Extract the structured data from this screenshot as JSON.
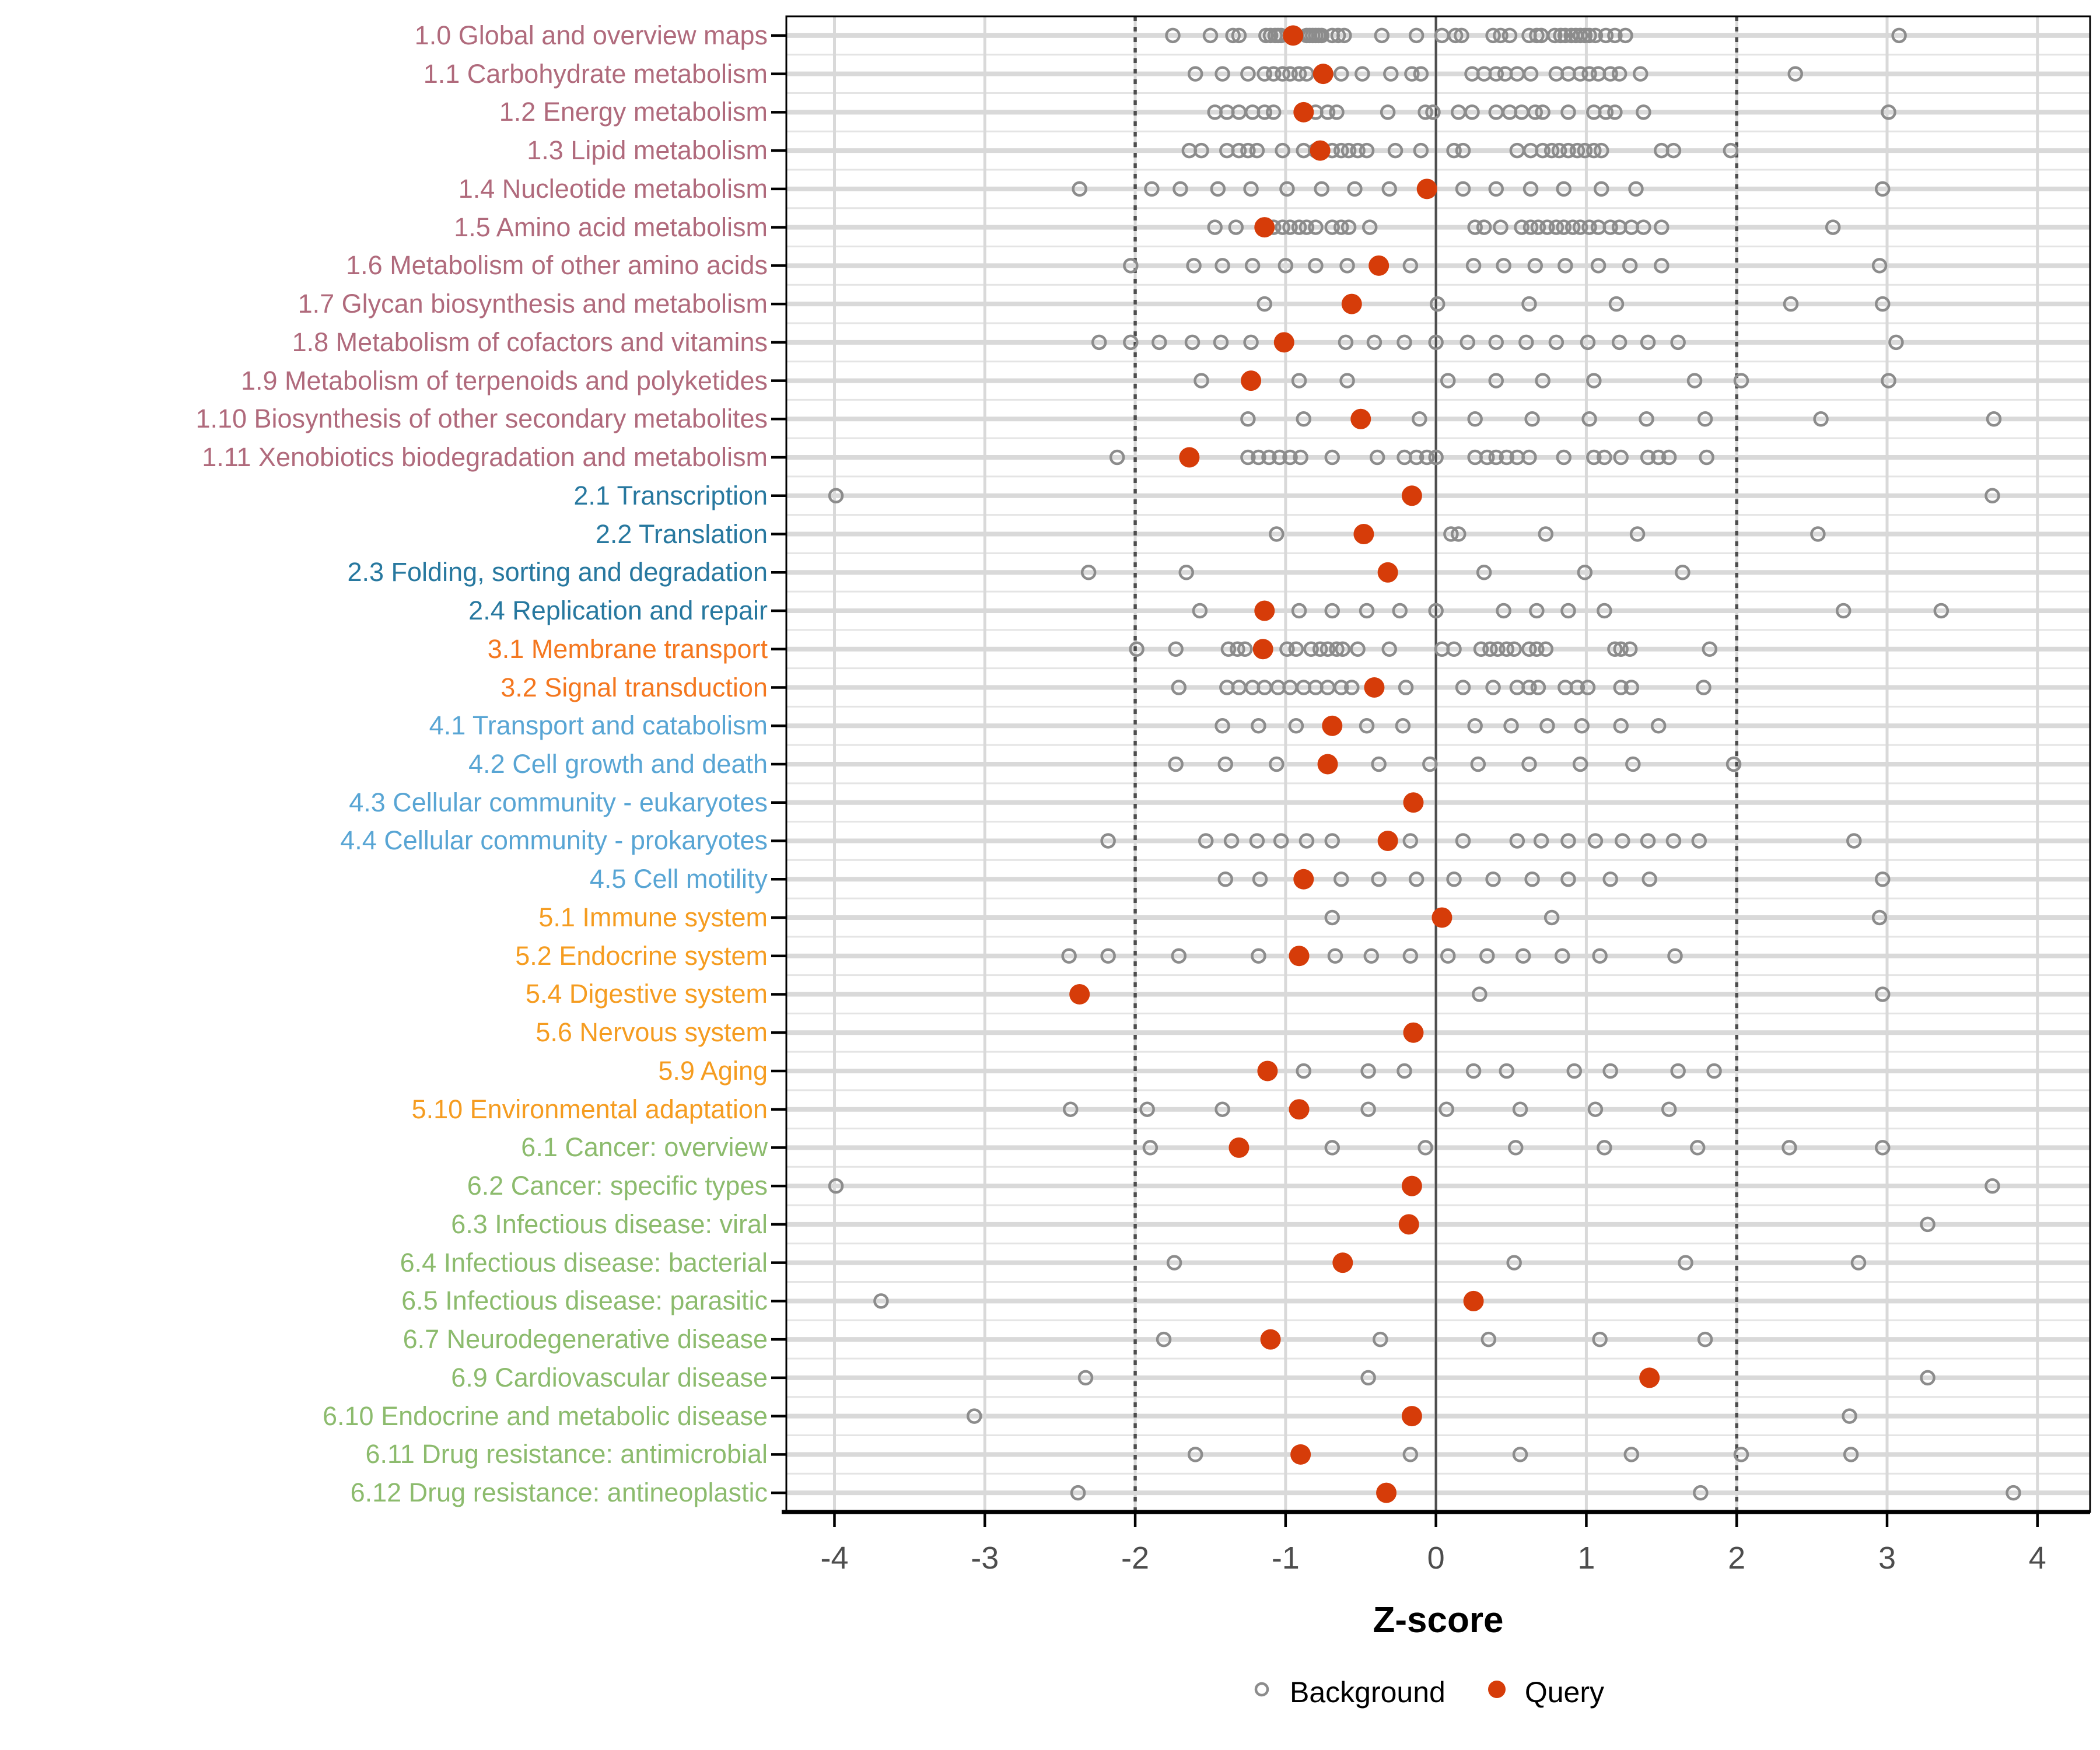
{
  "figure": {
    "xlabel": "Z-score",
    "background_color": "#ffffff",
    "panel_border_color": "#000000",
    "grid_major_color": "#d9d9d9",
    "grid_minor_color": "#e4e4e4",
    "reference_line_color": "#4d4d4d",
    "axis_tick_label_color": "#4d4d4d",
    "background_point_color": "#8c8c8c",
    "query_point_color": "#d63c09"
  },
  "legend": {
    "background_label": "Background",
    "query_label": "Query"
  },
  "chart_data": {
    "type": "scatter",
    "title": "",
    "xlabel": "Z-score",
    "ylabel": "",
    "xlim": [
      -4.32,
      4.35
    ],
    "x_ticks": [
      -4,
      -3,
      -2,
      -1,
      0,
      1,
      2,
      3,
      4
    ],
    "grid": true,
    "legend_position": "bottom",
    "legend_entries": [
      "Background",
      "Query"
    ],
    "reference_lines": {
      "solid": [
        0
      ],
      "dotted": [
        -2,
        2
      ]
    },
    "group_colors": {
      "1": "#b06a7c",
      "2": "#27789f",
      "3": "#f4771f",
      "4": "#58a5d4",
      "5": "#f59c20",
      "6": "#8cbb6d"
    },
    "series": [
      {
        "name": "Background",
        "marker": "open-circle",
        "color": "#8c8c8c"
      },
      {
        "name": "Query",
        "marker": "filled-circle",
        "color": "#d63c09"
      }
    ],
    "rows": [
      {
        "label": "1.0 Global and overview maps",
        "group": "1",
        "query": -0.95,
        "background": [
          -1.75,
          -1.5,
          -1.35,
          -1.31,
          -1.13,
          -1.1,
          -1.07,
          -1.05,
          -1.03,
          -0.86,
          -0.84,
          -0.82,
          -0.8,
          -0.78,
          -0.76,
          -0.69,
          -0.65,
          -0.61,
          -0.36,
          -0.13,
          0.04,
          0.13,
          0.17,
          0.38,
          0.43,
          0.49,
          0.62,
          0.67,
          0.7,
          0.79,
          0.83,
          0.86,
          0.9,
          0.93,
          0.96,
          0.99,
          1.02,
          1.06,
          1.13,
          1.19,
          1.26,
          3.08
        ]
      },
      {
        "label": "1.1 Carbohydrate metabolism",
        "group": "1",
        "query": -0.75,
        "background": [
          -1.6,
          -1.42,
          -1.25,
          -1.14,
          -1.08,
          -1.02,
          -0.97,
          -0.91,
          -0.86,
          -0.63,
          -0.49,
          -0.3,
          -0.16,
          -0.1,
          0.24,
          0.32,
          0.4,
          0.46,
          0.54,
          0.63,
          0.8,
          0.88,
          0.96,
          1.02,
          1.08,
          1.16,
          1.22,
          1.36,
          2.39
        ]
      },
      {
        "label": "1.2 Energy metabolism",
        "group": "1",
        "query": -0.88,
        "background": [
          -1.47,
          -1.39,
          -1.31,
          -1.22,
          -1.14,
          -1.08,
          -0.8,
          -0.72,
          -0.66,
          -0.32,
          -0.07,
          -0.02,
          0.15,
          0.24,
          0.4,
          0.49,
          0.57,
          0.66,
          0.71,
          0.88,
          1.05,
          1.13,
          1.19,
          1.38,
          3.01
        ]
      },
      {
        "label": "1.3 Lipid metabolism",
        "group": "1",
        "query": -0.77,
        "background": [
          -1.64,
          -1.56,
          -1.39,
          -1.31,
          -1.25,
          -1.19,
          -1.02,
          -0.88,
          -0.8,
          -0.69,
          -0.63,
          -0.58,
          -0.52,
          -0.46,
          -0.27,
          -0.1,
          0.12,
          0.18,
          0.54,
          0.63,
          0.71,
          0.77,
          0.82,
          0.88,
          0.94,
          0.99,
          1.05,
          1.1,
          1.5,
          1.58,
          1.96
        ]
      },
      {
        "label": "1.4 Nucleotide metabolism",
        "group": "1",
        "query": -0.06,
        "background": [
          -2.37,
          -1.89,
          -1.7,
          -1.45,
          -1.23,
          -0.99,
          -0.76,
          -0.54,
          -0.31,
          0.18,
          0.4,
          0.63,
          0.85,
          1.1,
          1.33,
          2.97
        ]
      },
      {
        "label": "1.5 Amino acid metabolism",
        "group": "1",
        "query": -1.14,
        "background": [
          -1.47,
          -1.33,
          -1.08,
          -1.02,
          -0.97,
          -0.91,
          -0.86,
          -0.8,
          -0.69,
          -0.63,
          -0.58,
          -0.44,
          0.26,
          0.32,
          0.43,
          0.57,
          0.63,
          0.68,
          0.74,
          0.8,
          0.85,
          0.91,
          0.96,
          1.02,
          1.08,
          1.16,
          1.22,
          1.3,
          1.38,
          1.5,
          2.64
        ]
      },
      {
        "label": "1.6 Metabolism of other amino acids",
        "group": "1",
        "query": -0.38,
        "background": [
          -2.03,
          -1.61,
          -1.42,
          -1.22,
          -1.0,
          -0.8,
          -0.59,
          -0.17,
          0.25,
          0.45,
          0.66,
          0.86,
          1.08,
          1.29,
          1.5,
          2.95
        ]
      },
      {
        "label": "1.7 Glycan biosynthesis and metabolism",
        "group": "1",
        "query": -0.56,
        "background": [
          -1.14,
          0.01,
          0.62,
          1.2,
          2.36,
          2.97
        ]
      },
      {
        "label": "1.8 Metabolism of cofactors and vitamins",
        "group": "1",
        "query": -1.01,
        "background": [
          -2.24,
          -2.03,
          -1.84,
          -1.62,
          -1.43,
          -1.23,
          -0.6,
          -0.41,
          -0.21,
          0.0,
          0.21,
          0.4,
          0.6,
          0.8,
          1.01,
          1.22,
          1.41,
          1.61,
          3.06
        ]
      },
      {
        "label": "1.9 Metabolism of terpenoids and polyketides",
        "group": "1",
        "query": -1.23,
        "background": [
          -1.56,
          -0.91,
          -0.59,
          0.08,
          0.4,
          0.71,
          1.05,
          1.72,
          2.03,
          3.01
        ]
      },
      {
        "label": "1.10 Biosynthesis of other secondary metabolites",
        "group": "1",
        "query": -0.5,
        "background": [
          -1.25,
          -0.88,
          -0.11,
          0.26,
          0.64,
          1.02,
          1.4,
          1.79,
          2.56,
          3.71
        ]
      },
      {
        "label": "1.11 Xenobiotics biodegradation and metabolism",
        "group": "1",
        "query": -1.64,
        "background": [
          -2.12,
          -1.25,
          -1.18,
          -1.11,
          -1.04,
          -0.97,
          -0.9,
          -0.69,
          -0.39,
          -0.21,
          -0.13,
          -0.06,
          0.0,
          0.26,
          0.34,
          0.4,
          0.47,
          0.54,
          0.62,
          0.85,
          1.05,
          1.12,
          1.23,
          1.41,
          1.48,
          1.55,
          1.8
        ]
      },
      {
        "label": "2.1 Transcription",
        "group": "2",
        "query": -0.16,
        "background": [
          -3.99,
          3.7
        ]
      },
      {
        "label": "2.2 Translation",
        "group": "2",
        "query": -0.48,
        "background": [
          -1.06,
          0.1,
          0.15,
          0.73,
          1.34,
          2.54
        ]
      },
      {
        "label": "2.3 Folding, sorting and degradation",
        "group": "2",
        "query": -0.32,
        "background": [
          -2.31,
          -1.66,
          0.32,
          0.99,
          1.64
        ]
      },
      {
        "label": "2.4 Replication and repair",
        "group": "2",
        "query": -1.14,
        "background": [
          -1.57,
          -0.91,
          -0.69,
          -0.46,
          -0.24,
          0.0,
          0.45,
          0.67,
          0.88,
          1.12,
          2.71,
          3.36
        ]
      },
      {
        "label": "3.1 Membrane transport",
        "group": "3",
        "query": -1.15,
        "background": [
          -1.99,
          -1.73,
          -1.38,
          -1.32,
          -1.27,
          -0.99,
          -0.93,
          -0.83,
          -0.77,
          -0.72,
          -0.66,
          -0.62,
          -0.52,
          -0.31,
          0.04,
          0.12,
          0.3,
          0.36,
          0.41,
          0.47,
          0.52,
          0.62,
          0.67,
          0.73,
          1.19,
          1.23,
          1.29,
          1.82
        ]
      },
      {
        "label": "3.2 Signal transduction",
        "group": "3",
        "query": -0.41,
        "background": [
          -1.71,
          -1.39,
          -1.31,
          -1.22,
          -1.14,
          -1.05,
          -0.97,
          -0.88,
          -0.8,
          -0.72,
          -0.63,
          -0.56,
          -0.2,
          0.18,
          0.38,
          0.54,
          0.62,
          0.68,
          0.86,
          0.94,
          1.01,
          1.23,
          1.3,
          1.78
        ]
      },
      {
        "label": "4.1 Transport and catabolism",
        "group": "4",
        "query": -0.69,
        "background": [
          -1.42,
          -1.18,
          -0.93,
          -0.46,
          -0.22,
          0.26,
          0.5,
          0.74,
          0.97,
          1.23,
          1.48
        ]
      },
      {
        "label": "4.2 Cell growth and death",
        "group": "4",
        "query": -0.72,
        "background": [
          -1.73,
          -1.4,
          -1.06,
          -0.38,
          -0.04,
          0.28,
          0.62,
          0.96,
          1.31,
          1.98
        ]
      },
      {
        "label": "4.3 Cellular community - eukaryotes",
        "group": "4",
        "query": -0.15,
        "background": []
      },
      {
        "label": "4.4 Cellular community - prokaryotes",
        "group": "4",
        "query": -0.32,
        "background": [
          -2.18,
          -1.53,
          -1.36,
          -1.19,
          -1.03,
          -0.86,
          -0.69,
          -0.17,
          0.18,
          0.54,
          0.7,
          0.88,
          1.06,
          1.24,
          1.41,
          1.58,
          1.75,
          2.78
        ]
      },
      {
        "label": "4.5 Cell motility",
        "group": "4",
        "query": -0.88,
        "background": [
          -1.4,
          -1.17,
          -0.63,
          -0.38,
          -0.13,
          0.12,
          0.38,
          0.64,
          0.88,
          1.16,
          1.42,
          2.97
        ]
      },
      {
        "label": "5.1 Immune system",
        "group": "5",
        "query": 0.04,
        "background": [
          -0.69,
          0.77,
          2.95
        ]
      },
      {
        "label": "5.2 Endocrine system",
        "group": "5",
        "query": -0.91,
        "background": [
          -2.44,
          -2.18,
          -1.71,
          -1.18,
          -0.67,
          -0.43,
          -0.17,
          0.08,
          0.34,
          0.58,
          0.84,
          1.09,
          1.59
        ]
      },
      {
        "label": "5.4 Digestive system",
        "group": "5",
        "query": -2.37,
        "background": [
          0.29,
          2.97
        ]
      },
      {
        "label": "5.6 Nervous system",
        "group": "5",
        "query": -0.15,
        "background": []
      },
      {
        "label": "5.9 Aging",
        "group": "5",
        "query": -1.12,
        "background": [
          -0.88,
          -0.45,
          -0.21,
          0.25,
          0.47,
          0.92,
          1.16,
          1.61,
          1.85
        ]
      },
      {
        "label": "5.10 Environmental adaptation",
        "group": "5",
        "query": -0.91,
        "background": [
          -2.43,
          -1.92,
          -1.42,
          -0.45,
          0.07,
          0.56,
          1.06,
          1.55
        ]
      },
      {
        "label": "6.1 Cancer: overview",
        "group": "6",
        "query": -1.31,
        "background": [
          -1.9,
          -0.69,
          -0.07,
          0.53,
          1.12,
          1.74,
          2.35,
          2.97
        ]
      },
      {
        "label": "6.2 Cancer: specific types",
        "group": "6",
        "query": -0.16,
        "background": [
          -3.99,
          3.7
        ]
      },
      {
        "label": "6.3 Infectious disease: viral",
        "group": "6",
        "query": -0.18,
        "background": [
          3.27
        ]
      },
      {
        "label": "6.4 Infectious disease: bacterial",
        "group": "6",
        "query": -0.62,
        "background": [
          -1.74,
          0.52,
          1.66,
          2.81
        ]
      },
      {
        "label": "6.5 Infectious disease: parasitic",
        "group": "6",
        "query": 0.25,
        "background": [
          -3.69
        ]
      },
      {
        "label": "6.7 Neurodegenerative disease",
        "group": "6",
        "query": -1.1,
        "background": [
          -1.81,
          -0.37,
          0.35,
          1.09,
          1.79
        ]
      },
      {
        "label": "6.9 Cardiovascular disease",
        "group": "6",
        "query": 1.42,
        "background": [
          -2.33,
          -0.45,
          3.27
        ]
      },
      {
        "label": "6.10 Endocrine and metabolic disease",
        "group": "6",
        "query": -0.16,
        "background": [
          -3.07,
          2.75
        ]
      },
      {
        "label": "6.11 Drug resistance: antimicrobial",
        "group": "6",
        "query": -0.9,
        "background": [
          -1.6,
          -0.17,
          0.56,
          1.3,
          2.03,
          2.76
        ]
      },
      {
        "label": "6.12 Drug resistance: antineoplastic",
        "group": "6",
        "query": -0.33,
        "background": [
          -2.38,
          1.76,
          3.84
        ]
      }
    ]
  }
}
